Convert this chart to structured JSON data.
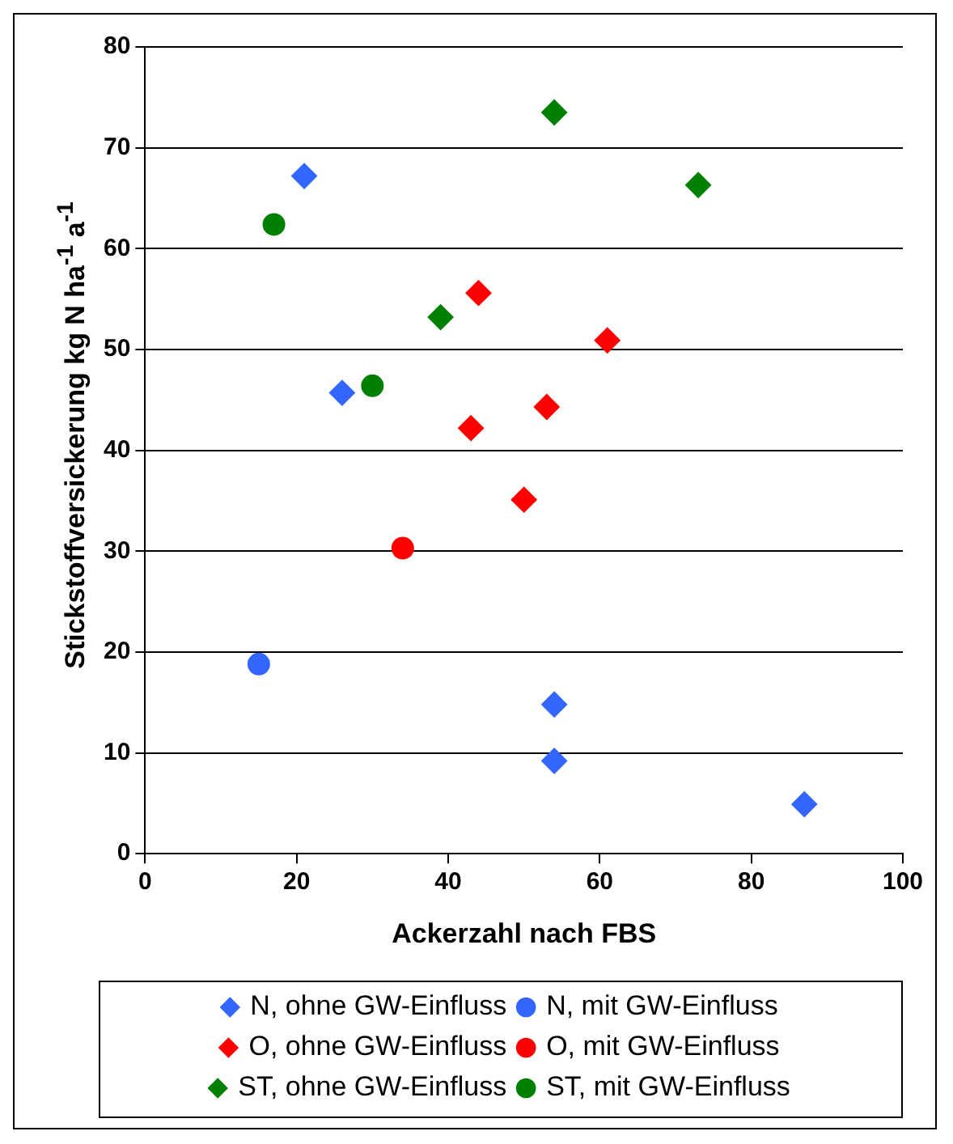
{
  "chart_data": {
    "type": "scatter",
    "xlabel": "Ackerzahl nach FBS",
    "ylabel": "Stickstoffversickerung  kg N ha$^{-1}$ a$^{-1}$",
    "xlim": [
      0,
      100
    ],
    "xticks": [
      0,
      20,
      40,
      60,
      80,
      100
    ],
    "ylim": [
      0,
      80
    ],
    "yticks": [
      0,
      10,
      20,
      30,
      40,
      50,
      60,
      70,
      80
    ],
    "grid": "y",
    "legend": "bottom",
    "series": [
      {
        "name": "N, ohne GW-Einfluss",
        "color": "#3366ff",
        "marker": "diamond",
        "x": [
          21,
          26,
          54,
          54,
          87
        ],
        "values": [
          67.2,
          45.7,
          14.8,
          9.2,
          4.9
        ]
      },
      {
        "name": "N, mit GW-Einfluss",
        "color": "#3366ff",
        "marker": "circle",
        "x": [
          15
        ],
        "values": [
          18.8
        ]
      },
      {
        "name": "O, ohne GW-Einfluss",
        "color": "#ff0000",
        "marker": "diamond",
        "x": [
          44,
          61,
          53,
          43,
          50
        ],
        "values": [
          55.6,
          50.9,
          44.3,
          42.2,
          35.1
        ]
      },
      {
        "name": "O, mit GW-Einfluss",
        "color": "#ff0000",
        "marker": "circle",
        "x": [
          34
        ],
        "values": [
          30.3
        ]
      },
      {
        "name": "ST, ohne GW-Einfluss",
        "color": "#008000",
        "marker": "diamond",
        "x": [
          54,
          73,
          39
        ],
        "values": [
          73.5,
          66.3,
          53.2
        ]
      },
      {
        "name": "ST, mit GW-Einfluss",
        "color": "#008000",
        "marker": "circle",
        "x": [
          17,
          30
        ],
        "values": [
          62.4,
          46.4
        ]
      }
    ]
  }
}
